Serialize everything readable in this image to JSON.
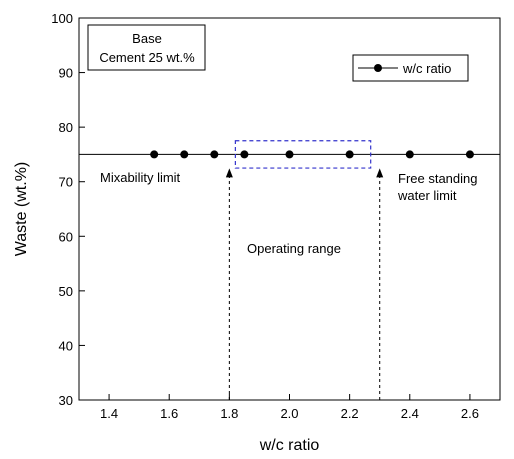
{
  "chart_data": {
    "type": "scatter",
    "xlabel": "w/c ratio",
    "ylabel": "Waste (wt.%)",
    "xlim": [
      1.3,
      2.7
    ],
    "ylim": [
      30,
      100
    ],
    "x_ticks": [
      1.4,
      1.6,
      1.8,
      2.0,
      2.2,
      2.4,
      2.6
    ],
    "x_tick_labels": [
      "1.4",
      "1.6",
      "1.8",
      "2.0",
      "2.2",
      "2.4",
      "2.6"
    ],
    "y_ticks": [
      30,
      40,
      50,
      60,
      70,
      80,
      90,
      100
    ],
    "y_tick_labels": [
      "30",
      "40",
      "50",
      "60",
      "70",
      "80",
      "90",
      "100"
    ],
    "grid": false,
    "legend_position": "top-right",
    "series": [
      {
        "name": "w/c ratio",
        "color": "#000000",
        "marker": "circle",
        "x": [
          1.55,
          1.65,
          1.75,
          1.85,
          2.0,
          2.2,
          2.4,
          2.6
        ],
        "y": [
          75,
          75,
          75,
          75,
          75,
          75,
          75,
          75
        ]
      }
    ],
    "reference_line": {
      "y": 75,
      "x_range": [
        1.3,
        2.7
      ]
    },
    "annotations": {
      "info_box": {
        "line1": "Base",
        "line2": "Cement 25 wt.%"
      },
      "mixability": {
        "text": "Mixability limit",
        "x": 1.8
      },
      "operating": {
        "text": "Operating  range"
      },
      "free_standing": {
        "line1": "Free standing",
        "line2": "water limit",
        "x": 2.3
      },
      "operating_box": {
        "x_range": [
          1.82,
          2.27
        ],
        "y_range": [
          72.5,
          77.5
        ],
        "color": "#3333cc"
      }
    }
  }
}
